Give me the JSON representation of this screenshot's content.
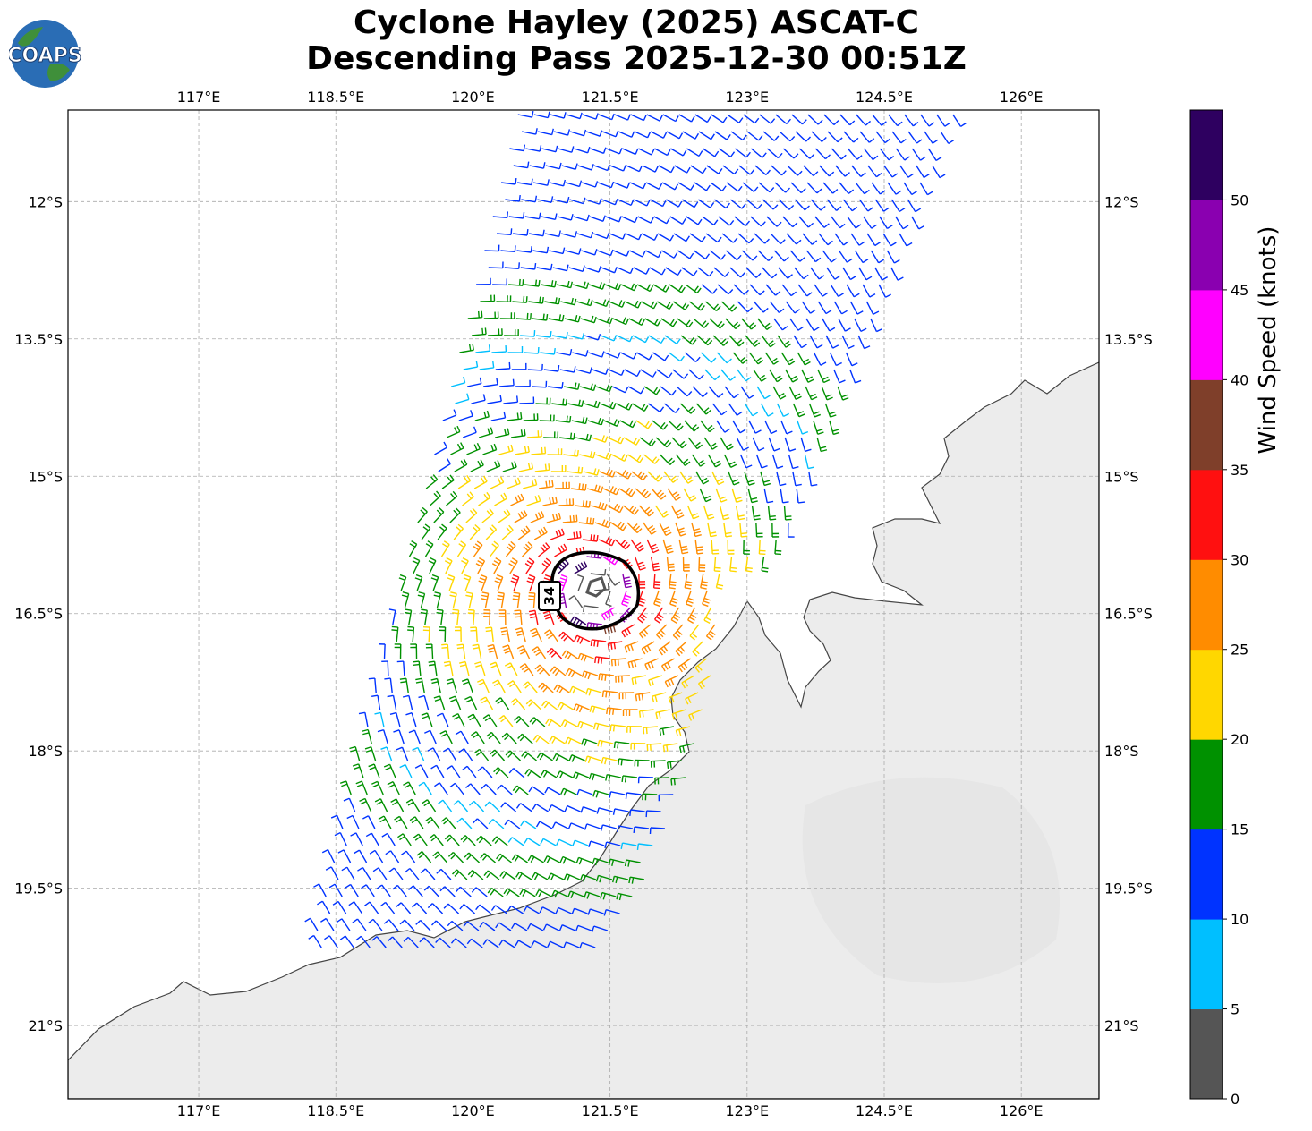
{
  "title": {
    "line1": "Cyclone Hayley (2025) ASCAT-C",
    "line2": "Descending Pass 2025-12-30 00:51Z"
  },
  "logo": {
    "text": "COAPS",
    "icon": "globe-icon"
  },
  "map": {
    "lon_range": [
      115.57,
      126.85
    ],
    "lat_range": [
      -11.0,
      -21.8
    ],
    "lon_ticks": [
      117,
      118.5,
      120,
      121.5,
      123,
      124.5,
      126
    ],
    "lon_tick_labels": [
      "117°E",
      "118.5°E",
      "120°E",
      "121.5°E",
      "123°E",
      "124.5°E",
      "126°E"
    ],
    "lat_ticks": [
      -12,
      -13.5,
      -15,
      -16.5,
      -18,
      -19.5,
      -21
    ],
    "lat_tick_labels": [
      "12°S",
      "13.5°S",
      "15°S",
      "16.5°S",
      "18°S",
      "19.5°S",
      "21°S"
    ],
    "gridlines": true,
    "storm_center": {
      "lon": 121.33,
      "lat": -16.25
    },
    "wind_radius_label": "34",
    "land_color": "#eeeeee",
    "ocean_color": "#ffffff"
  },
  "colorbar": {
    "label": "Wind Speed (knots)",
    "tick_labels": [
      "0",
      "5",
      "10",
      "15",
      "20",
      "25",
      "30",
      "35",
      "40",
      "45",
      "50"
    ],
    "bins": [
      {
        "min": 0,
        "max": 5,
        "color": "#555555"
      },
      {
        "min": 5,
        "max": 10,
        "color": "#00bfff"
      },
      {
        "min": 10,
        "max": 15,
        "color": "#0033ff"
      },
      {
        "min": 15,
        "max": 20,
        "color": "#009100"
      },
      {
        "min": 20,
        "max": 25,
        "color": "#ffd700"
      },
      {
        "min": 25,
        "max": 30,
        "color": "#ff8c00"
      },
      {
        "min": 30,
        "max": 35,
        "color": "#ff1010"
      },
      {
        "min": 35,
        "max": 40,
        "color": "#7f3f2a"
      },
      {
        "min": 40,
        "max": 45,
        "color": "#ff00ff"
      },
      {
        "min": 45,
        "max": 50,
        "color": "#8a00b0"
      },
      {
        "min": 50,
        "max": 55,
        "color": "#2e0060"
      }
    ]
  }
}
